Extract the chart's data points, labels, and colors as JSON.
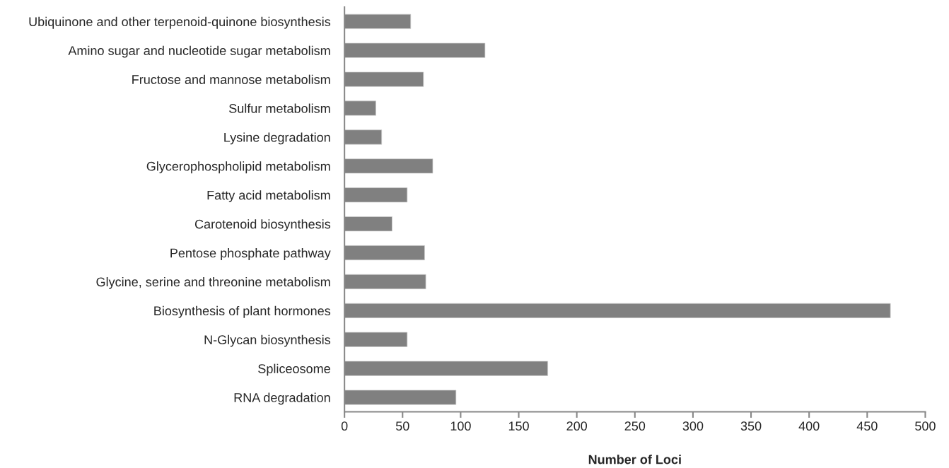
{
  "chart_data": {
    "type": "bar",
    "orientation": "horizontal",
    "xlabel": "Number of Loci",
    "categories": [
      "Ubiquinone and other terpenoid-quinone biosynthesis",
      "Amino sugar and nucleotide sugar metabolism",
      "Fructose and mannose metabolism",
      "Sulfur metabolism",
      "Lysine degradation",
      "Glycerophospholipid metabolism",
      "Fatty acid metabolism",
      "Carotenoid biosynthesis",
      "Pentose phosphate pathway",
      "Glycine, serine and threonine metabolism",
      "Biosynthesis of plant hormones",
      "N-Glycan biosynthesis",
      "Spliceosome",
      "RNA degradation"
    ],
    "values": [
      57,
      121,
      68,
      27,
      32,
      76,
      54,
      41,
      69,
      70,
      470,
      54,
      175,
      96
    ],
    "color": "#808080",
    "xlim": [
      0,
      500
    ],
    "xticks": [
      0,
      50,
      100,
      150,
      200,
      250,
      300,
      350,
      400,
      450,
      500
    ],
    "grid": false,
    "legend": false
  }
}
